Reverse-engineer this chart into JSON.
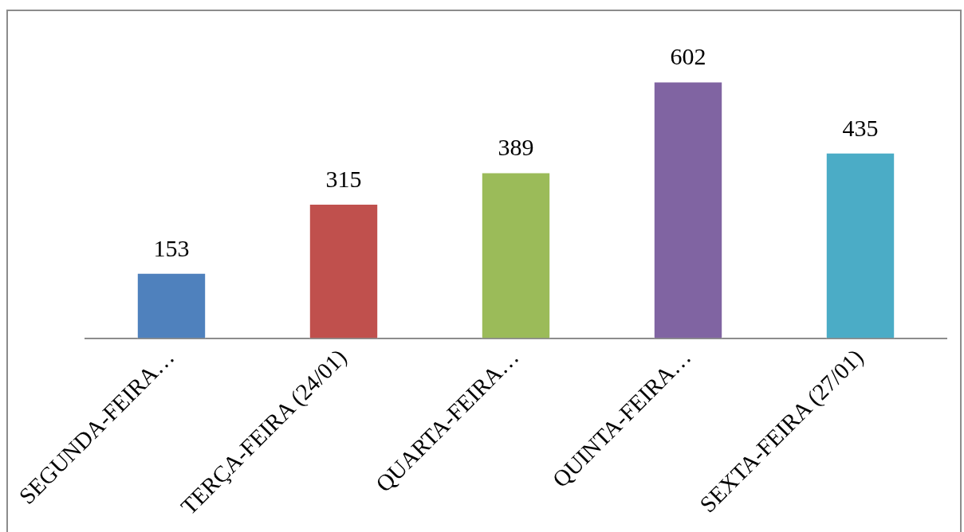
{
  "chart_data": {
    "type": "bar",
    "categories": [
      "SEGUNDA-FEIRA…",
      "TERÇA-FEIRA (24/01)",
      "QUARTA-FEIRA…",
      "QUINTA-FEIRA…",
      "SEXTA-FEIRA (27/01)"
    ],
    "values": [
      153,
      315,
      389,
      602,
      435
    ],
    "colors": [
      "#4f81bd",
      "#c0504d",
      "#9bbb59",
      "#8064a2",
      "#4bacc6"
    ],
    "data_labels": true,
    "grid": false,
    "legend": false
  }
}
